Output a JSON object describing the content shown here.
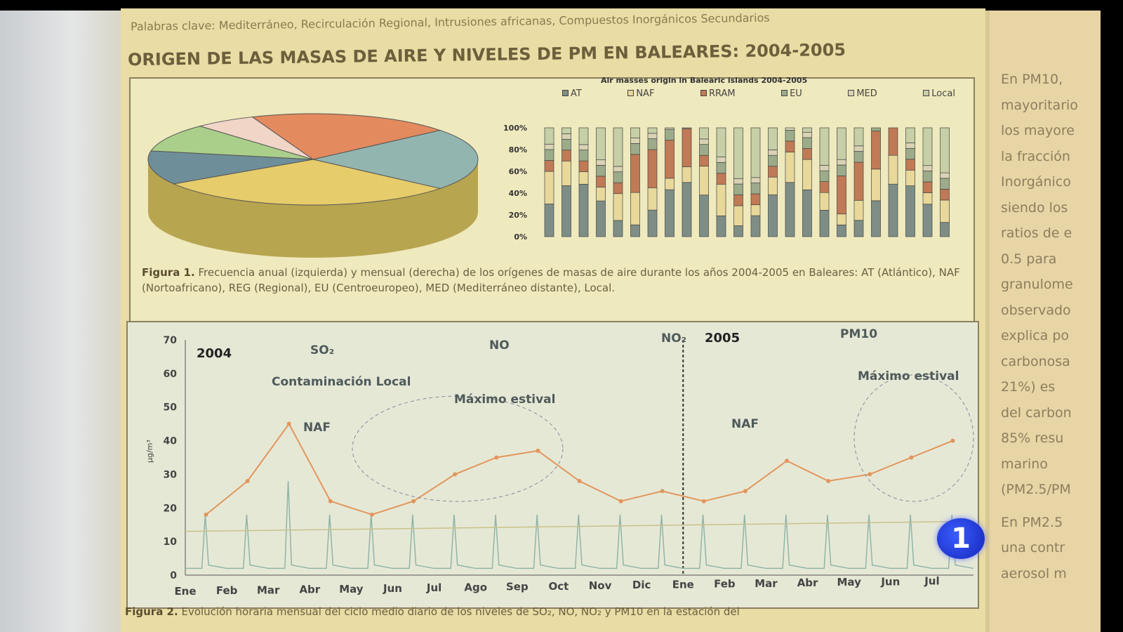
{
  "poster": {
    "keywords": "Palabras clave: Mediterráneo, Recirculación Regional, Intrusiones africanas, Compuestos Inorgánicos Secundarios",
    "title": "ORIGEN DE LAS MASAS DE AIRE Y NIVELES DE PM EN BALEARES: 2004-2005",
    "fig1": {
      "bar_title": "Air masses origin in Balearic islands 2004-2005",
      "legend": [
        "AT",
        "NAF",
        "RRAM",
        "EU",
        "MED",
        "Local"
      ],
      "legend_colors": [
        "#7e8e86",
        "#e8d89a",
        "#c07a55",
        "#9cab8a",
        "#d9d2b4",
        "#c6cfa6"
      ],
      "y_ticks": [
        "100%",
        "80%",
        "60%",
        "40%",
        "20%",
        "0%"
      ],
      "pie_colors": [
        "#e38a5e",
        "#93b5b0",
        "#e6cc6a",
        "#6e8f99",
        "#aacf8a",
        "#f1d5c7"
      ],
      "caption_label": "Figura 1.",
      "caption": "Frecuencia anual (izquierda) y mensual (derecha) de los orígenes de masas de aire durante los años 2004-2005 en Baleares: AT (Atlántico), NAF (Nortoafricano), REG (Regional), EU (Centroeuropeo), MED (Mediterráneo distante), Local."
    },
    "fig2": {
      "y_ticks": [
        "70",
        "60",
        "50",
        "40",
        "30",
        "20",
        "10",
        "0"
      ],
      "ylabel": "µg/m³",
      "x_labels": [
        "Ene",
        "Feb",
        "Mar",
        "Abr",
        "May",
        "Jun",
        "Jul",
        "Ago",
        "Sep",
        "Oct",
        "Nov",
        "Dic",
        "Ene",
        "Feb",
        "Mar",
        "Abr",
        "May",
        "Jun",
        "Jul"
      ],
      "year1": "2004",
      "year2": "2005",
      "legend": [
        "SO₂",
        "NO",
        "NO₂",
        "PM10"
      ],
      "annotations": [
        "Contaminación Local",
        "NAF",
        "Máximo estival",
        "NAF",
        "Máximo estival"
      ],
      "pm10_monthly": [
        18,
        28,
        45,
        22,
        18,
        22,
        30,
        35,
        37,
        28,
        22,
        25,
        22,
        25,
        34,
        28,
        30,
        35,
        40
      ],
      "caption_label": "Figura 2.",
      "caption": "Evolución horaria mensual del ciclo medio diario de los niveles de SO₂, NO, NO₂ y PM10 en la estación del"
    }
  },
  "side_text": [
    "En PM10,",
    "mayoritario",
    "los mayore",
    "la fracción",
    "Inorgánico",
    "siendo los",
    "ratios de e",
    "0.5 para",
    "granulome",
    "observado",
    "explica po",
    "carbonosa",
    "21%) es",
    "del carbon",
    "85% resu",
    "marino",
    "(PM2.5/PM",
    "En PM2.5",
    "una contr",
    "aerosol m"
  ],
  "channel_logo": "1"
}
